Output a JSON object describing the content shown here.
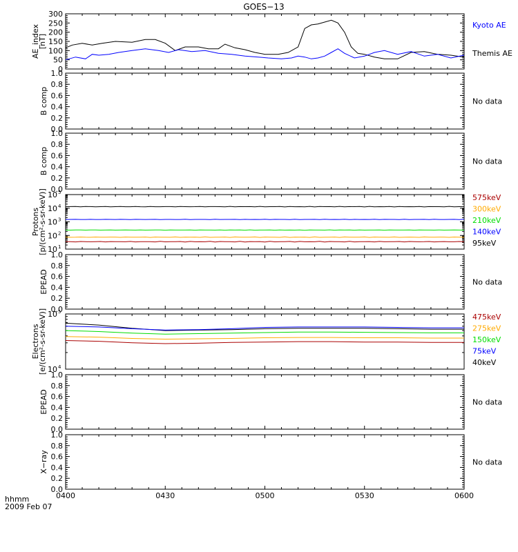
{
  "title": "GOES−13",
  "footer": {
    "time_label": "hhmm",
    "date_label": "2009 Feb 07"
  },
  "x_axis": {
    "range": [
      "04:00",
      "06:00"
    ],
    "tick_labels": [
      "0400",
      "0430",
      "0500",
      "0530",
      "0600"
    ]
  },
  "colors": {
    "black": "#000000",
    "blue": "#0000ff",
    "green": "#00dd00",
    "orange": "#ffaa00",
    "dark_red": "#aa0000"
  },
  "chart_data": [
    {
      "id": "ae",
      "type": "line",
      "ylabel_lines": [
        "AE_index",
        "[nT]"
      ],
      "ylim": [
        0,
        300
      ],
      "yticks": [
        "0",
        "50",
        "100",
        "150",
        "200",
        "250",
        "300"
      ],
      "legend": [
        {
          "text": "Kyoto AE",
          "color": "#0000ff"
        },
        {
          "text": "Themis AE",
          "color": "#000000"
        }
      ],
      "series": [
        {
          "name": "Themis AE",
          "color": "#000000",
          "x": [
            "04:00",
            "04:02",
            "04:05",
            "04:08",
            "04:11",
            "04:15",
            "04:20",
            "04:24",
            "04:27",
            "04:30",
            "04:33",
            "04:36",
            "04:40",
            "04:43",
            "04:46",
            "04:48",
            "04:51",
            "04:54",
            "04:57",
            "05:00",
            "05:04",
            "05:07",
            "05:10",
            "05:12",
            "05:14",
            "05:16",
            "05:18",
            "05:20",
            "05:22",
            "05:24",
            "05:26",
            "05:28",
            "05:30",
            "05:33",
            "05:36",
            "05:40",
            "05:44",
            "05:48",
            "05:52",
            "05:56",
            "06:00"
          ],
          "values": [
            115,
            130,
            140,
            130,
            140,
            150,
            145,
            160,
            160,
            140,
            100,
            120,
            120,
            110,
            110,
            135,
            115,
            105,
            90,
            80,
            80,
            90,
            120,
            220,
            240,
            245,
            255,
            265,
            250,
            200,
            120,
            85,
            80,
            65,
            55,
            55,
            90,
            95,
            80,
            75,
            65
          ]
        },
        {
          "name": "Kyoto AE",
          "color": "#0000ff",
          "x": [
            "04:00",
            "04:03",
            "04:06",
            "04:08",
            "04:10",
            "04:13",
            "04:16",
            "04:20",
            "04:24",
            "04:28",
            "04:31",
            "04:34",
            "04:38",
            "04:42",
            "04:46",
            "04:50",
            "04:54",
            "04:58",
            "05:01",
            "05:05",
            "05:08",
            "05:10",
            "05:12",
            "05:14",
            "05:16",
            "05:18",
            "05:20",
            "05:22",
            "05:24",
            "05:27",
            "05:30",
            "05:33",
            "05:36",
            "05:40",
            "05:44",
            "05:48",
            "05:52",
            "05:56",
            "06:00"
          ],
          "values": [
            50,
            65,
            55,
            80,
            75,
            80,
            90,
            100,
            110,
            100,
            90,
            105,
            95,
            100,
            85,
            80,
            70,
            65,
            60,
            55,
            60,
            70,
            65,
            55,
            60,
            70,
            90,
            110,
            85,
            60,
            70,
            90,
            100,
            80,
            95,
            70,
            80,
            60,
            75
          ]
        }
      ]
    },
    {
      "id": "b1",
      "type": "line",
      "ylabel": "B comp",
      "ylim": [
        0,
        1
      ],
      "yticks": [
        "0.0",
        "0.2",
        "0.4",
        "0.6",
        "0.8",
        "1.0"
      ],
      "legend": [
        {
          "text": "No data",
          "color": "#000000"
        }
      ],
      "series": []
    },
    {
      "id": "b2",
      "type": "line",
      "ylabel": "B comp",
      "ylim": [
        0,
        1
      ],
      "yticks": [
        "0.0",
        "0.2",
        "0.4",
        "0.6",
        "0.8",
        "1.0"
      ],
      "legend": [
        {
          "text": "No data",
          "color": "#000000"
        }
      ],
      "series": []
    },
    {
      "id": "protons",
      "type": "line",
      "scale": "log",
      "ylabel_lines": [
        "Protons",
        "[p/(cm²-s-sr-keV)]"
      ],
      "ylim": [
        10,
        100000
      ],
      "yticks_log": [
        {
          "base": "10",
          "exp": "1"
        },
        {
          "base": "10",
          "exp": "2"
        },
        {
          "base": "10",
          "exp": "3"
        },
        {
          "base": "10",
          "exp": "4"
        },
        {
          "base": "10",
          "exp": "5"
        }
      ],
      "legend": [
        {
          "text": "575keV",
          "color": "#aa0000"
        },
        {
          "text": "300keV",
          "color": "#ffaa00"
        },
        {
          "text": "210keV",
          "color": "#00dd00"
        },
        {
          "text": "140keV",
          "color": "#0000ff"
        },
        {
          "text": "95keV",
          "color": "#000000"
        }
      ],
      "series": [
        {
          "name": "95keV",
          "color": "#000000",
          "level": 13000,
          "jitter": 0.05
        },
        {
          "name": "140keV",
          "color": "#0000ff",
          "level": 1500,
          "jitter": 0.03
        },
        {
          "name": "210keV",
          "color": "#00dd00",
          "level": 250,
          "jitter": 0.03
        },
        {
          "name": "300keV",
          "color": "#ffaa00",
          "level": 75,
          "jitter": 0.05
        },
        {
          "name": "575keV",
          "color": "#aa0000",
          "level": 35,
          "jitter": 0.06
        }
      ]
    },
    {
      "id": "epead1",
      "type": "line",
      "ylabel": "EPEAD",
      "ylim": [
        0,
        1
      ],
      "yticks": [
        "0.0",
        "0.2",
        "0.4",
        "0.6",
        "0.8",
        "1.0"
      ],
      "legend": [
        {
          "text": "No data",
          "color": "#000000"
        }
      ],
      "series": []
    },
    {
      "id": "electrons",
      "type": "line",
      "scale": "log",
      "ylabel_lines": [
        "Electrons",
        "[e/(cm²-s-sr-keV)]"
      ],
      "ylim": [
        10000,
        100000
      ],
      "yticks_log": [
        {
          "base": "10",
          "exp": "4"
        },
        {
          "base": "10",
          "exp": "5"
        }
      ],
      "legend": [
        {
          "text": "475keV",
          "color": "#aa0000"
        },
        {
          "text": "275keV",
          "color": "#ffaa00"
        },
        {
          "text": "150keV",
          "color": "#00dd00"
        },
        {
          "text": "75keV",
          "color": "#0000ff"
        },
        {
          "text": "40keV",
          "color": "#000000"
        }
      ],
      "series": [
        {
          "name": "40keV",
          "color": "#000000",
          "x": [
            "04:00",
            "04:10",
            "04:20",
            "04:30",
            "04:40",
            "04:50",
            "05:00",
            "05:10",
            "05:20",
            "05:30",
            "05:40",
            "05:50",
            "06:00"
          ],
          "values": [
            68000,
            63000,
            55000,
            50000,
            51000,
            52000,
            54000,
            55000,
            55000,
            55000,
            54000,
            53000,
            53000
          ]
        },
        {
          "name": "75keV",
          "color": "#0000ff",
          "x": [
            "04:00",
            "04:10",
            "04:20",
            "04:30",
            "04:40",
            "04:50",
            "05:00",
            "05:10",
            "05:20",
            "05:30",
            "05:40",
            "05:50",
            "06:00"
          ],
          "values": [
            60000,
            58000,
            54000,
            51000,
            52000,
            54000,
            57000,
            58000,
            58000,
            58000,
            57000,
            56000,
            56000
          ]
        },
        {
          "name": "150keV",
          "color": "#00dd00",
          "x": [
            "04:00",
            "04:10",
            "04:20",
            "04:30",
            "04:40",
            "04:50",
            "05:00",
            "05:10",
            "05:20",
            "05:30",
            "05:40",
            "05:50",
            "06:00"
          ],
          "values": [
            50000,
            48000,
            45000,
            43000,
            44000,
            45000,
            46000,
            47000,
            47000,
            46500,
            46000,
            45500,
            45500
          ]
        },
        {
          "name": "275keV",
          "color": "#ffaa00",
          "x": [
            "04:00",
            "04:10",
            "04:20",
            "04:30",
            "04:40",
            "04:50",
            "05:00",
            "05:10",
            "05:20",
            "05:30",
            "05:40",
            "05:50",
            "06:00"
          ],
          "values": [
            39000,
            38000,
            36000,
            35000,
            35500,
            36000,
            37000,
            37500,
            37500,
            37000,
            37000,
            36500,
            36500
          ]
        },
        {
          "name": "475keV",
          "color": "#aa0000",
          "x": [
            "04:00",
            "04:10",
            "04:20",
            "04:30",
            "04:40",
            "04:50",
            "05:00",
            "05:10",
            "05:20",
            "05:30",
            "05:40",
            "05:50",
            "06:00"
          ],
          "values": [
            33000,
            32000,
            30000,
            29000,
            29500,
            30500,
            31000,
            31500,
            31500,
            31000,
            31000,
            30500,
            30500
          ]
        }
      ]
    },
    {
      "id": "epead2",
      "type": "line",
      "ylabel": "EPEAD",
      "ylim": [
        0,
        1
      ],
      "yticks": [
        "0.0",
        "0.2",
        "0.4",
        "0.6",
        "0.8",
        "1.0"
      ],
      "legend": [
        {
          "text": "No data",
          "color": "#000000"
        }
      ],
      "series": []
    },
    {
      "id": "xray",
      "type": "line",
      "ylabel": "X−ray",
      "ylim": [
        0,
        1
      ],
      "yticks": [
        "0.0",
        "0.2",
        "0.4",
        "0.6",
        "0.8",
        "1.0"
      ],
      "legend": [
        {
          "text": "No data",
          "color": "#000000"
        }
      ],
      "series": []
    }
  ]
}
